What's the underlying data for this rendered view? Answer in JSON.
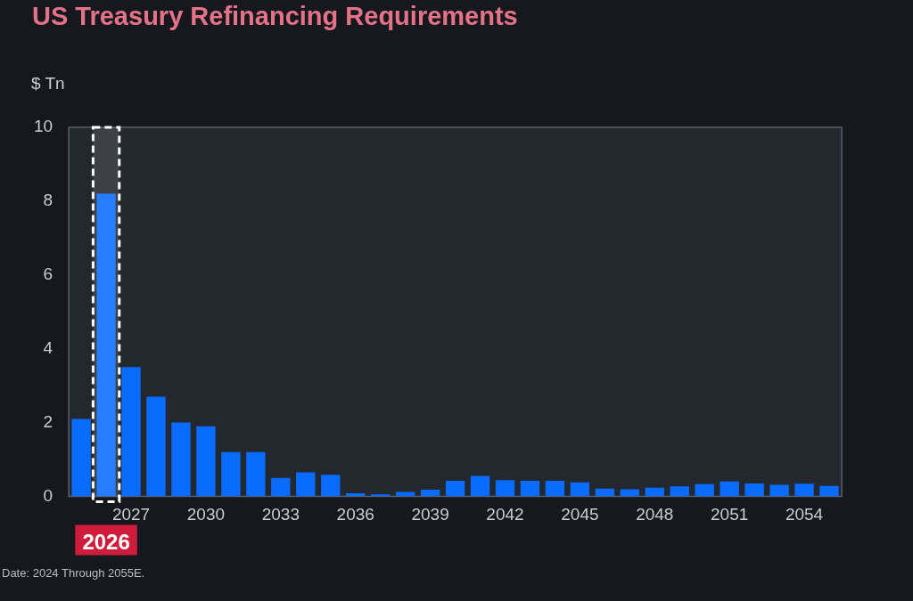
{
  "chart_data": {
    "type": "bar",
    "title": "US Treasury Refinancing Requirements",
    "ylabel": "$ Tn",
    "categories": [
      null,
      "2026",
      "2027",
      null,
      null,
      "2030",
      null,
      null,
      "2033",
      null,
      null,
      "2036",
      null,
      null,
      "2039",
      null,
      null,
      "2042",
      null,
      null,
      "2045",
      null,
      null,
      "2048",
      null,
      null,
      "2051",
      null,
      null,
      "2054",
      null
    ],
    "values": [
      2.1,
      8.2,
      3.5,
      2.7,
      2.0,
      1.9,
      1.2,
      1.2,
      0.5,
      0.65,
      0.58,
      0.08,
      0.05,
      0.12,
      0.18,
      0.42,
      0.55,
      0.44,
      0.42,
      0.42,
      0.38,
      0.21,
      0.19,
      0.23,
      0.27,
      0.33,
      0.4,
      0.35,
      0.31,
      0.34,
      0.28
    ],
    "color": "#0a6cff",
    "ylim": [
      0,
      10
    ],
    "yticks": [
      0,
      2,
      4,
      6,
      8,
      10
    ],
    "grid": false,
    "legend": false,
    "bands": [
      {
        "axis": "x",
        "from": "2026",
        "to": "2026",
        "color": "#ffffff"
      }
    ],
    "annotations": [
      "Date: 2024 Through 2055E."
    ]
  }
}
